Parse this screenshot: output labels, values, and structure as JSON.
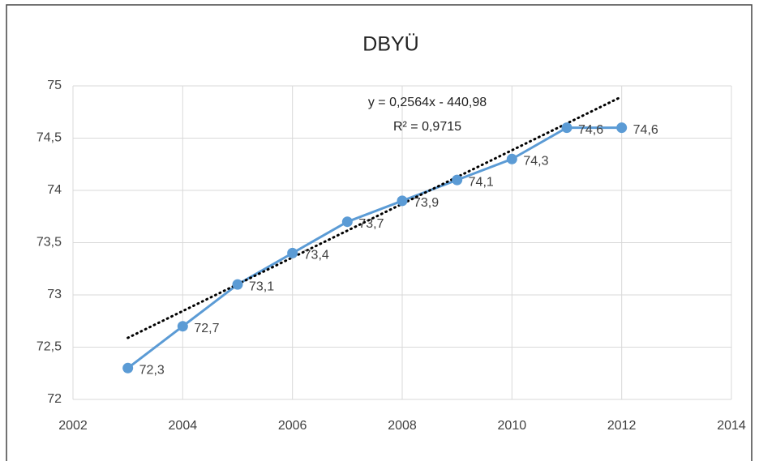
{
  "chart_data": {
    "type": "line",
    "title": "DBYÜ",
    "x": [
      2003,
      2004,
      2005,
      2006,
      2007,
      2008,
      2009,
      2010,
      2011,
      2012
    ],
    "series": [
      {
        "name": "DBYÜ",
        "color": "#5b9bd5",
        "values": [
          72.3,
          72.7,
          73.1,
          73.4,
          73.7,
          73.9,
          74.1,
          74.3,
          74.6,
          74.6
        ],
        "value_labels": [
          "72,3",
          "72,7",
          "73,1",
          "73,4",
          "73,7",
          "73,9",
          "74,1",
          "74,3",
          "74,6",
          "74,6"
        ]
      }
    ],
    "xlim": [
      2002,
      2014
    ],
    "xticks": [
      2002,
      2004,
      2006,
      2008,
      2010,
      2012,
      2014
    ],
    "ylim": [
      72,
      75
    ],
    "yticks": [
      72,
      {
        "value": 72.5,
        "label": "72,5"
      },
      73,
      {
        "value": 73.5,
        "label": "73,5"
      },
      74,
      {
        "value": 74.5,
        "label": "74,5"
      },
      75
    ],
    "grid": true,
    "trendline": {
      "slope": 0.2564,
      "intercept": -440.98,
      "color": "#000000",
      "equation_label": "y = 0,2564x - 440,98",
      "r2_label": "R² = 0,9715"
    }
  }
}
